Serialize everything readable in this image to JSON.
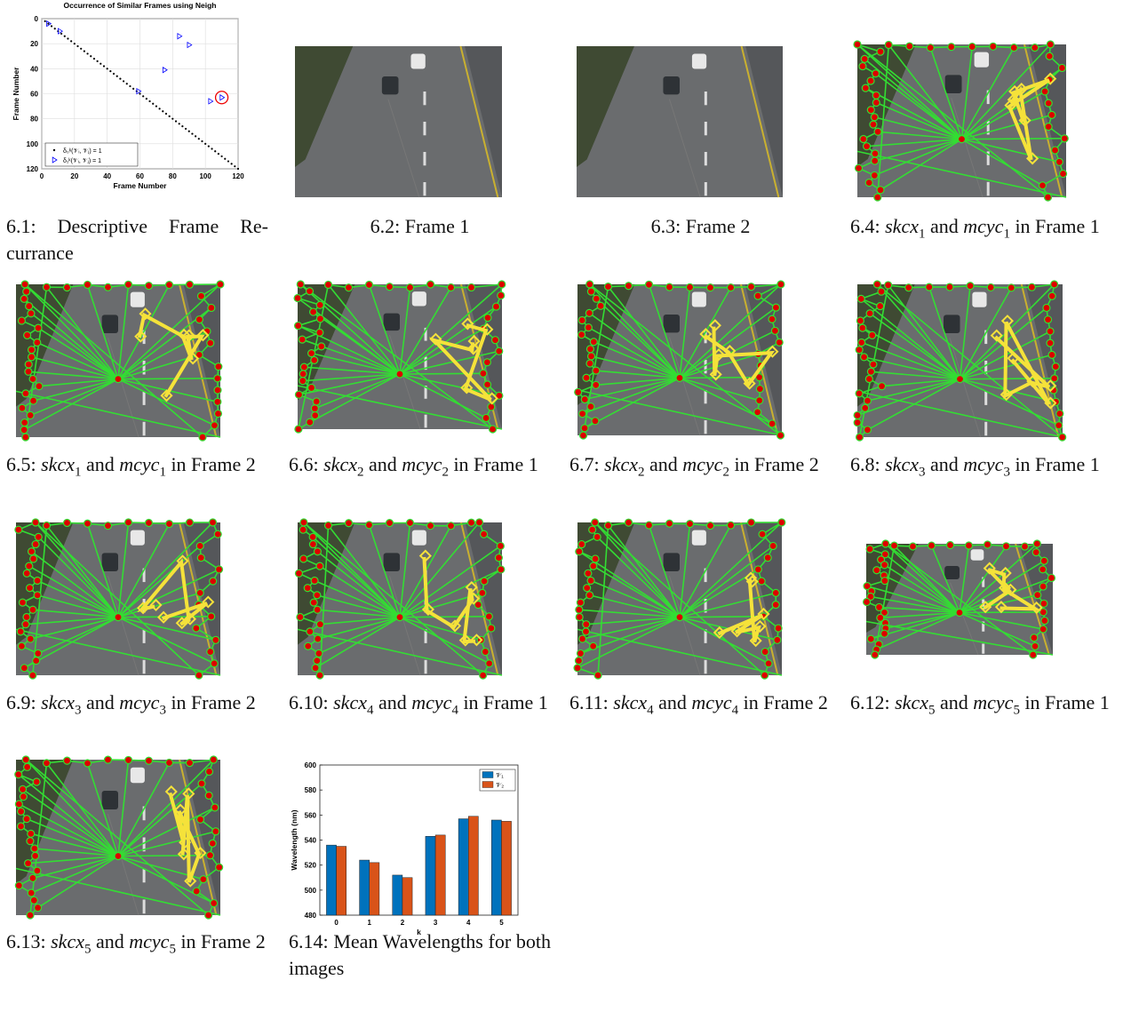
{
  "captions": [
    {
      "label": "6.1:",
      "text": "Descriptive Frame Re­currance"
    },
    {
      "label": "6.2:",
      "text": "Frame 1"
    },
    {
      "label": "6.3:",
      "text": "Frame 2"
    },
    {
      "label": "6.4:",
      "m1": "skcx",
      "s1": "1",
      "w1": "and",
      "m2": "mcyc",
      "s2": "1",
      "w2": "in Frame 1"
    },
    {
      "label": "6.5:",
      "m1": "skcx",
      "s1": "1",
      "w1": "and",
      "m2": "mcyc",
      "s2": "1",
      "w2": "in Frame 2"
    },
    {
      "label": "6.6:",
      "m1": "skcx",
      "s1": "2",
      "w1": "and",
      "m2": "mcyc",
      "s2": "2",
      "w2": "in Frame 1"
    },
    {
      "label": "6.7:",
      "m1": "skcx",
      "s1": "2",
      "w1": "and",
      "m2": "mcyc",
      "s2": "2",
      "w2": "in Frame 2"
    },
    {
      "label": "6.8:",
      "m1": "skcx",
      "s1": "3",
      "w1": "and",
      "m2": "mcyc",
      "s2": "3",
      "w2": "in Frame 1"
    },
    {
      "label": "6.9:",
      "m1": "skcx",
      "s1": "3",
      "w1": "and",
      "m2": "mcyc",
      "s2": "3",
      "w2": "in Frame 2"
    },
    {
      "label": "6.10:",
      "m1": "skcx",
      "s1": "4",
      "w1": "and",
      "m2": "mcyc",
      "s2": "4",
      "w2": "in Frame 1"
    },
    {
      "label": "6.11:",
      "m1": "skcx",
      "s1": "4",
      "w1": "and",
      "m2": "mcyc",
      "s2": "4",
      "w2": "in Frame 2"
    },
    {
      "label": "6.12:",
      "m1": "skcx",
      "s1": "5",
      "w1": "and",
      "m2": "mcyc",
      "s2": "5",
      "w2": "in Frame 1"
    },
    {
      "label": "6.13:",
      "m1": "skcx",
      "s1": "5",
      "w1": "and",
      "m2": "mcyc",
      "s2": "5",
      "w2": "in Frame 2"
    },
    {
      "label": "6.14:",
      "text": "Mean Wavelengths for both images"
    }
  ],
  "charts": [
    {
      "type": "scatter",
      "title": "Occurrence of Similar Frames using Neigh",
      "x_label": "Frame Number",
      "y_label": "Frame Number",
      "xlim": [
        0,
        120
      ],
      "ylim": [
        0,
        120
      ],
      "y_reversed": true,
      "xticks": [
        0,
        20,
        40,
        60,
        80,
        100,
        120
      ],
      "yticks": [
        0,
        20,
        40,
        60,
        80,
        100,
        120
      ],
      "grid": true,
      "legend": "lower-left",
      "series": [
        {
          "name": "δ₀ᵏ(𝒱ᵢ, 𝒱ⱼ) = 1",
          "color": "#000000",
          "marker": "dot",
          "x": [
            2,
            4,
            6,
            8,
            10,
            12,
            14,
            16,
            18,
            20,
            22,
            24,
            26,
            28,
            30,
            32,
            34,
            36,
            38,
            40,
            42,
            44,
            46,
            48,
            50,
            52,
            54,
            56,
            58,
            60,
            62,
            64,
            66,
            68,
            70,
            72,
            74,
            76,
            78,
            80,
            82,
            84,
            86,
            88,
            90,
            92,
            94,
            96,
            98,
            100,
            102,
            104,
            106,
            108,
            110,
            112,
            114,
            116,
            118,
            120
          ],
          "y": [
            2,
            4,
            6,
            8,
            10,
            12,
            14,
            16,
            18,
            20,
            22,
            24,
            26,
            28,
            30,
            32,
            34,
            36,
            38,
            40,
            42,
            44,
            46,
            48,
            50,
            52,
            54,
            56,
            58,
            60,
            62,
            64,
            66,
            68,
            70,
            72,
            74,
            76,
            78,
            80,
            82,
            84,
            86,
            88,
            90,
            92,
            94,
            96,
            98,
            100,
            102,
            104,
            106,
            108,
            110,
            112,
            114,
            116,
            118,
            120
          ]
        },
        {
          "name": "δ₁ᵏ(𝒱ᵢ, 𝒱ⱼ) = 1",
          "color": "#0000ff",
          "marker": "triangle",
          "x": [
            4,
            11,
            59,
            75,
            84,
            90,
            103,
            110
          ],
          "y": [
            4,
            10,
            58,
            41,
            14,
            21,
            66,
            63
          ]
        }
      ]
    },
    {
      "type": "bar",
      "x_label": "k",
      "y_label": "Wavelength (nm)",
      "categories": [
        "0",
        "1",
        "2",
        "3",
        "4",
        "5"
      ],
      "ylim": [
        480,
        600
      ],
      "yticks": [
        480,
        500,
        520,
        540,
        560,
        580,
        600
      ],
      "legend": "upper-right",
      "series": [
        {
          "name": "𝒱₁",
          "color": "#0072bd",
          "values": [
            536,
            524,
            512,
            543,
            557,
            556
          ]
        },
        {
          "name": "𝒱₂",
          "color": "#d95319",
          "values": [
            535,
            522,
            510,
            544,
            559,
            555
          ]
        }
      ]
    }
  ]
}
